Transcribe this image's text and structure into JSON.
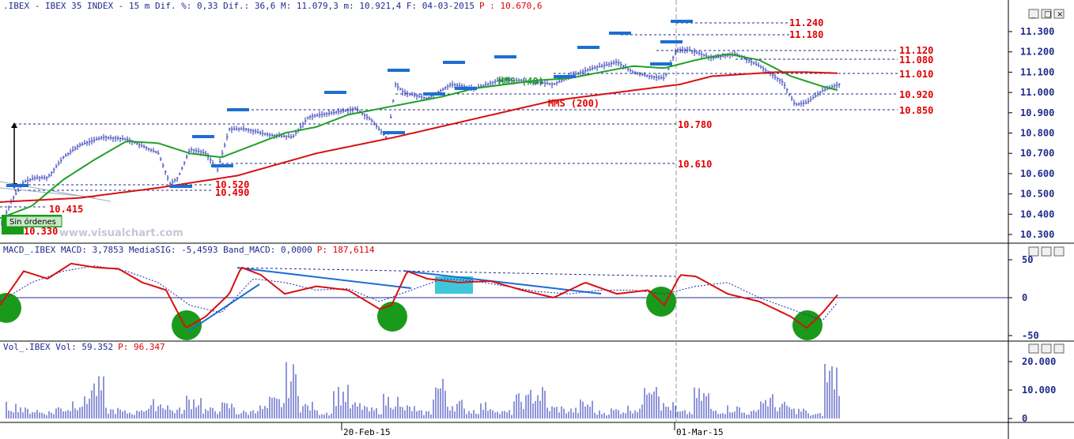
{
  "header": {
    "main": ".IBEX - IBEX 35 INDEX -  15 m Dif. %: 0,33 Dif.: 36,6 M: 11.079,3 m: 10.921,4 F: 04-03-2015",
    "last_price": "P : 10.670,6",
    "macd": "MACD_.IBEX MACD: 3,7853 MediaSIG: -5,4593 Band_MACD: 0,0000",
    "macd_p": "P: 187,6114",
    "vol": "Vol_.IBEX Vol: 59.352",
    "vol_p": "P: 96.347"
  },
  "watermark": "www.visualchart.com",
  "order_label": "Sin órdenes",
  "window_buttons": {
    "minimize": "_",
    "maximize": "□",
    "close": "×"
  },
  "annotations": {
    "mms40": "MMS (40)",
    "mms200": "MMS (200)",
    "lvl_11240": "11.240",
    "lvl_11180": "11.180",
    "lvl_11120": "11.120",
    "lvl_11080": "11.080",
    "lvl_11010": "11.010",
    "lvl_10920": "10.920",
    "lvl_10850": "10.850",
    "lvl_10780": "10.780",
    "lvl_10610": "10.610",
    "lvl_10520": "10.520",
    "lvl_10490": "10.490",
    "lvl_10415": "10.415",
    "lvl_10330": "10.330"
  },
  "dates": [
    "20-Feb-15",
    "01-Mar-15"
  ],
  "colors": {
    "price_bars": "#1f2bb0",
    "mms40": "#22a02a",
    "mms200": "#d81010",
    "macd": "#d81010",
    "signal": "#1f2bb0",
    "trendline": "#1c6fd0",
    "level_line": "#1f2b8c",
    "level_text": "#e00000",
    "circle": "#1a9a1a",
    "box": "#3cc8d8"
  },
  "chart_data": [
    {
      "type": "line",
      "title": "IBEX 35 INDEX 15 m",
      "yticks": [
        "11.300",
        "11.200",
        "11.100",
        "11.000",
        "10.900",
        "10.800",
        "10.700",
        "10.600",
        "10.500",
        "10.400",
        "10.300"
      ],
      "ylim": [
        10270,
        11310
      ],
      "series": [
        {
          "name": "Price",
          "x": [
            0,
            15,
            30,
            45,
            60,
            80,
            100,
            130,
            160,
            200,
            215,
            225,
            240,
            260,
            275,
            290,
            310,
            340,
            370,
            390,
            420,
            450,
            470,
            490,
            500,
            510,
            540,
            570,
            600,
            630,
            660,
            700,
            720,
            750,
            780,
            800,
            820,
            840,
            855,
            870,
            900,
            930,
            960,
            990,
            1005,
            1020,
            1040,
            1060
          ],
          "values": [
            10340,
            10470,
            10560,
            10580,
            10580,
            10680,
            10740,
            10780,
            10770,
            10700,
            10550,
            10580,
            10720,
            10700,
            10620,
            10820,
            10820,
            10790,
            10780,
            10880,
            10900,
            10920,
            10860,
            10770,
            11040,
            11000,
            10970,
            11040,
            11020,
            11060,
            11060,
            11040,
            11080,
            11120,
            11150,
            11100,
            11080,
            11070,
            11210,
            11210,
            11170,
            11190,
            11130,
            11050,
            10940,
            10950,
            11010,
            11040
          ]
        },
        {
          "name": "MMS (40)",
          "x": [
            0,
            40,
            80,
            120,
            160,
            200,
            240,
            280,
            320,
            360,
            400,
            440,
            480,
            520,
            560,
            600,
            640,
            680,
            720,
            760,
            800,
            840,
            880,
            920,
            960,
            1000,
            1040,
            1060
          ],
          "values": [
            10380,
            10440,
            10570,
            10670,
            10760,
            10750,
            10700,
            10680,
            10740,
            10800,
            10830,
            10890,
            10920,
            10950,
            10980,
            11020,
            11040,
            11060,
            11070,
            11100,
            11130,
            11120,
            11160,
            11190,
            11160,
            11080,
            11030,
            11010
          ]
        },
        {
          "name": "MMS (200)",
          "x": [
            0,
            100,
            200,
            300,
            400,
            500,
            600,
            700,
            800,
            860,
            900,
            940,
            980,
            1020,
            1060
          ],
          "values": [
            10460,
            10480,
            10530,
            10590,
            10700,
            10780,
            10870,
            10960,
            11010,
            11040,
            11080,
            11090,
            11100,
            11100,
            11095
          ]
        }
      ]
    },
    {
      "type": "line",
      "title": "MACD_.IBEX",
      "yticks": [
        "50",
        "0",
        "-50"
      ],
      "ylim": [
        -55,
        55
      ],
      "series": [
        {
          "name": "MACD",
          "x": [
            0,
            30,
            60,
            90,
            120,
            150,
            180,
            210,
            235,
            260,
            290,
            305,
            330,
            360,
            400,
            440,
            480,
            495,
            515,
            540,
            580,
            620,
            660,
            700,
            740,
            780,
            820,
            840,
            860,
            880,
            920,
            960,
            1000,
            1020,
            1040,
            1060
          ],
          "values": [
            -10,
            35,
            25,
            45,
            40,
            38,
            20,
            10,
            -40,
            -25,
            5,
            40,
            30,
            5,
            15,
            10,
            -15,
            -10,
            35,
            25,
            20,
            22,
            10,
            0,
            20,
            5,
            10,
            -10,
            30,
            28,
            5,
            -5,
            -25,
            -40,
            -20,
            5
          ]
        },
        {
          "name": "MediaSIG",
          "x": [
            0,
            40,
            80,
            120,
            160,
            200,
            240,
            280,
            320,
            360,
            400,
            440,
            480,
            520,
            560,
            600,
            640,
            680,
            720,
            760,
            800,
            840,
            880,
            920,
            960,
            1000,
            1040,
            1060
          ],
          "values": [
            -5,
            20,
            35,
            42,
            35,
            20,
            -10,
            -20,
            25,
            20,
            10,
            12,
            -5,
            10,
            25,
            22,
            15,
            8,
            5,
            10,
            10,
            5,
            15,
            20,
            0,
            -15,
            -30,
            -5
          ]
        }
      ]
    },
    {
      "type": "bar",
      "title": "Vol_.IBEX",
      "yticks": [
        "20.000",
        "10.000",
        "0"
      ],
      "ylim": [
        0,
        23000
      ],
      "values": [
        6000,
        4000,
        3000,
        5000,
        8000,
        15000,
        4000,
        3000,
        5000,
        7000,
        4000,
        9000,
        4000,
        6000,
        3000,
        5000,
        8000,
        20000,
        6000,
        3000,
        12000,
        6000,
        4000,
        9000,
        5000,
        3000,
        15000,
        7000,
        4000,
        6000,
        3000,
        9000,
        12000,
        5000,
        4000,
        7000,
        3000,
        4000,
        5000,
        20000,
        6000,
        3000,
        11000,
        4000,
        5000,
        3000,
        9000,
        6000,
        4000,
        2000,
        22000
      ]
    }
  ]
}
